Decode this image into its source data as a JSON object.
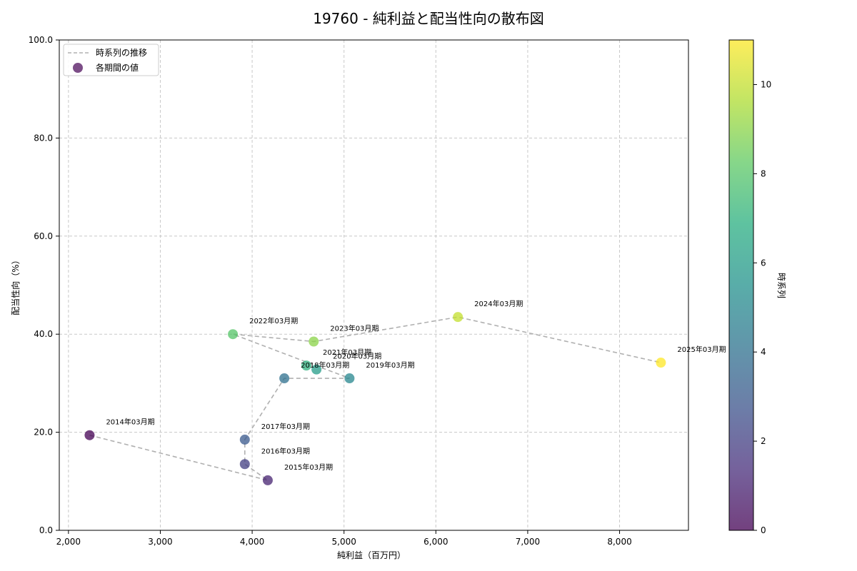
{
  "chart_data": {
    "type": "scatter",
    "title": "19760 - 純利益と配当性向の散布図",
    "xlabel": "純利益（百万円）",
    "ylabel": "配当性向（%）",
    "xlim": [
      1900,
      8750
    ],
    "ylim": [
      0,
      100
    ],
    "xticks": [
      2000,
      3000,
      4000,
      5000,
      6000,
      7000,
      8000
    ],
    "xtick_labels": [
      "2,000",
      "3,000",
      "4,000",
      "5,000",
      "6,000",
      "7,000",
      "8,000"
    ],
    "yticks": [
      0,
      20,
      40,
      60,
      80,
      100
    ],
    "ytick_labels": [
      "0.0",
      "20.0",
      "40.0",
      "60.0",
      "80.0",
      "100.0"
    ],
    "grid": true,
    "legend": {
      "position": "top-left",
      "line_label": "時系列の推移",
      "points_label": "各期間の値"
    },
    "colorbar": {
      "label": "時系列",
      "min": 0,
      "max": 11,
      "ticks": [
        0,
        2,
        4,
        6,
        8,
        10
      ],
      "tick_labels": [
        "0",
        "2",
        "4",
        "6",
        "8",
        "10"
      ]
    },
    "points": [
      {
        "label": "2014年03月期",
        "x": 2230,
        "y": 19.4,
        "t": 0
      },
      {
        "label": "2015年03月期",
        "x": 4170,
        "y": 10.2,
        "t": 1
      },
      {
        "label": "2016年03月期",
        "x": 3920,
        "y": 13.5,
        "t": 2
      },
      {
        "label": "2017年03月期",
        "x": 3920,
        "y": 18.5,
        "t": 3
      },
      {
        "label": "2018年03月期",
        "x": 4350,
        "y": 31.0,
        "t": 4
      },
      {
        "label": "2019年03月期",
        "x": 5060,
        "y": 31.0,
        "t": 5
      },
      {
        "label": "2020年03月期",
        "x": 4700,
        "y": 32.8,
        "t": 6
      },
      {
        "label": "2021年03月期",
        "x": 4590,
        "y": 33.6,
        "t": 7
      },
      {
        "label": "2022年03月期",
        "x": 3790,
        "y": 40.0,
        "t": 8
      },
      {
        "label": "2023年03月期",
        "x": 4670,
        "y": 38.5,
        "t": 9
      },
      {
        "label": "2024年03月期",
        "x": 6240,
        "y": 43.5,
        "t": 10
      },
      {
        "label": "2025年03月期",
        "x": 8450,
        "y": 34.2,
        "t": 11
      }
    ],
    "path_order": [
      "2014年03月期",
      "2015年03月期",
      "2016年03月期",
      "2017年03月期",
      "2018年03月期",
      "2019年03月期",
      "2022年03月期",
      "2023年03月期",
      "2024年03月期",
      "2025年03月期"
    ],
    "colors": {
      "path": "#b0b0b0",
      "grid": "#c8c8c8",
      "axis": "#000000"
    }
  }
}
